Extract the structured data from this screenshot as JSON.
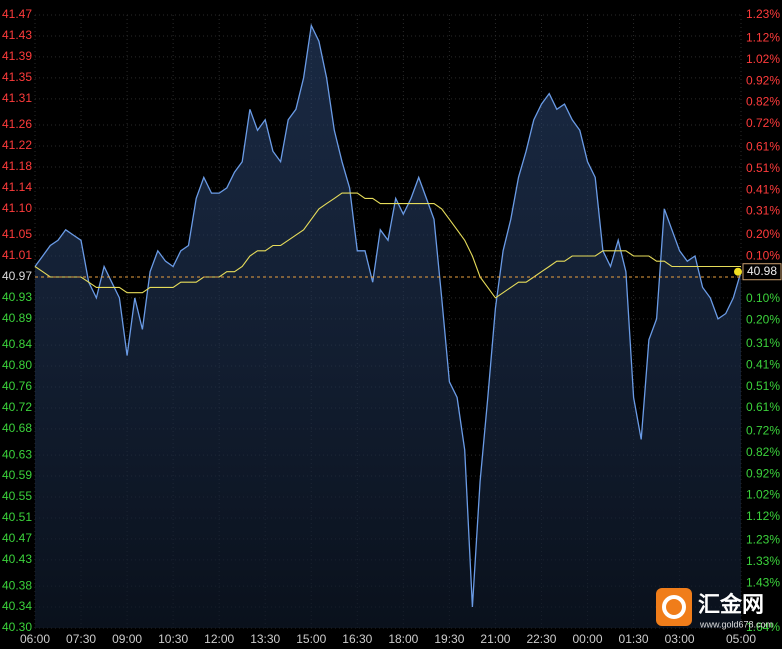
{
  "chart_data": {
    "type": "line",
    "x": [
      "06:00",
      "06:15",
      "06:30",
      "06:45",
      "07:00",
      "07:15",
      "07:30",
      "07:45",
      "08:00",
      "08:15",
      "08:30",
      "08:45",
      "09:00",
      "09:15",
      "09:30",
      "09:45",
      "10:00",
      "10:15",
      "10:30",
      "10:45",
      "11:00",
      "11:15",
      "11:30",
      "11:45",
      "12:00",
      "12:15",
      "12:30",
      "12:45",
      "13:00",
      "13:15",
      "13:30",
      "13:45",
      "14:00",
      "14:15",
      "14:30",
      "14:45",
      "15:00",
      "15:15",
      "15:30",
      "15:45",
      "16:00",
      "16:15",
      "16:30",
      "16:45",
      "17:00",
      "17:15",
      "17:30",
      "17:45",
      "18:00",
      "18:15",
      "18:30",
      "18:45",
      "19:00",
      "19:15",
      "19:30",
      "19:45",
      "20:00",
      "20:15",
      "20:30",
      "20:45",
      "21:00",
      "21:15",
      "21:30",
      "21:45",
      "22:00",
      "22:15",
      "22:30",
      "22:45",
      "23:00",
      "23:15",
      "23:30",
      "23:45",
      "00:00",
      "00:15",
      "00:30",
      "00:45",
      "01:00",
      "01:15",
      "01:30",
      "01:45",
      "02:00",
      "02:15",
      "02:30",
      "02:45",
      "03:00",
      "03:15",
      "03:30",
      "03:45",
      "04:00",
      "04:15",
      "04:30",
      "04:45",
      "05:00"
    ],
    "series": [
      {
        "color": "#6a9be6",
        "fill": true,
        "values": [
          40.99,
          41.01,
          41.03,
          41.04,
          41.06,
          41.05,
          41.04,
          40.96,
          40.93,
          40.99,
          40.96,
          40.93,
          40.82,
          40.93,
          40.87,
          40.98,
          41.02,
          41.0,
          40.99,
          41.02,
          41.03,
          41.12,
          41.16,
          41.13,
          41.13,
          41.14,
          41.17,
          41.19,
          41.29,
          41.25,
          41.27,
          41.21,
          41.19,
          41.27,
          41.29,
          41.35,
          41.45,
          41.42,
          41.35,
          41.25,
          41.19,
          41.14,
          41.02,
          41.02,
          40.96,
          41.06,
          41.04,
          41.12,
          41.09,
          41.12,
          41.16,
          41.12,
          41.08,
          40.93,
          40.77,
          40.74,
          40.64,
          40.34,
          40.58,
          40.74,
          40.91,
          41.02,
          41.08,
          41.16,
          41.21,
          41.27,
          41.3,
          41.32,
          41.29,
          41.3,
          41.27,
          41.25,
          41.19,
          41.16,
          41.02,
          40.99,
          41.04,
          40.98,
          40.74,
          40.66,
          40.85,
          40.89,
          41.1,
          41.06,
          41.02,
          41.0,
          41.01,
          40.95,
          40.93,
          40.89,
          40.9,
          40.93,
          40.98
        ]
      },
      {
        "color": "#e6dc5a",
        "fill": false,
        "values": [
          40.99,
          40.98,
          40.97,
          40.97,
          40.97,
          40.97,
          40.97,
          40.96,
          40.95,
          40.95,
          40.95,
          40.95,
          40.94,
          40.94,
          40.94,
          40.95,
          40.95,
          40.95,
          40.95,
          40.96,
          40.96,
          40.96,
          40.97,
          40.97,
          40.97,
          40.98,
          40.98,
          40.99,
          41.01,
          41.02,
          41.02,
          41.03,
          41.03,
          41.04,
          41.05,
          41.06,
          41.08,
          41.1,
          41.11,
          41.12,
          41.13,
          41.13,
          41.13,
          41.12,
          41.12,
          41.11,
          41.11,
          41.11,
          41.11,
          41.11,
          41.11,
          41.11,
          41.11,
          41.1,
          41.08,
          41.06,
          41.04,
          41.01,
          40.97,
          40.95,
          40.93,
          40.94,
          40.95,
          40.96,
          40.96,
          40.97,
          40.98,
          40.99,
          41.0,
          41.0,
          41.01,
          41.01,
          41.01,
          41.01,
          41.02,
          41.02,
          41.02,
          41.02,
          41.01,
          41.01,
          41.01,
          41.0,
          41.0,
          40.99,
          40.99,
          40.99,
          40.99,
          40.99,
          40.99,
          40.99,
          40.99,
          40.99,
          40.99
        ]
      }
    ],
    "xticks": [
      "06:00",
      "07:30",
      "09:00",
      "10:30",
      "12:00",
      "13:30",
      "15:00",
      "16:30",
      "18:00",
      "19:30",
      "21:00",
      "22:30",
      "00:00",
      "01:30",
      "03:00",
      "05:00"
    ],
    "ylim": [
      40.3,
      41.47
    ],
    "yticks": [
      41.47,
      41.43,
      41.39,
      41.35,
      41.31,
      41.26,
      41.22,
      41.18,
      41.14,
      {
        "value": 41.1,
        "label": "41.10"
      },
      41.05,
      41.01,
      40.97,
      40.93,
      40.89,
      40.84,
      {
        "value": 40.8,
        "label": "40.80"
      },
      40.76,
      40.72,
      40.68,
      40.63,
      40.59,
      40.55,
      40.51,
      40.47,
      40.43,
      40.38,
      40.34,
      {
        "value": 40.3,
        "label": "40.30"
      }
    ],
    "y2lim": [
      -1.64,
      1.23
    ],
    "y2ticks": [
      {
        "value": 1.23,
        "label": "1.23%"
      },
      {
        "value": 1.12,
        "label": "1.12%"
      },
      {
        "value": 1.02,
        "label": "1.02%"
      },
      {
        "value": 0.92,
        "label": "0.92%"
      },
      {
        "value": 0.82,
        "label": "0.82%"
      },
      {
        "value": 0.72,
        "label": "0.72%"
      },
      {
        "value": 0.61,
        "label": "0.61%"
      },
      {
        "value": 0.51,
        "label": "0.51%"
      },
      {
        "value": 0.41,
        "label": "0.41%"
      },
      {
        "value": 0.31,
        "label": "0.31%"
      },
      {
        "value": 0.2,
        "label": "0.20%"
      },
      {
        "value": 0.1,
        "label": "0.10%"
      },
      {
        "value": -0.1,
        "label": "0.10%"
      },
      {
        "value": -0.2,
        "label": "0.20%"
      },
      {
        "value": -0.31,
        "label": "0.31%"
      },
      {
        "value": -0.41,
        "label": "0.41%"
      },
      {
        "value": -0.51,
        "label": "0.51%"
      },
      {
        "value": -0.61,
        "label": "0.61%"
      },
      {
        "value": -0.72,
        "label": "0.72%"
      },
      {
        "value": -0.82,
        "label": "0.82%"
      },
      {
        "value": -0.92,
        "label": "0.92%"
      },
      {
        "value": -1.02,
        "label": "1.02%"
      },
      {
        "value": -1.12,
        "label": "1.12%"
      },
      {
        "value": -1.23,
        "label": "1.23%"
      },
      {
        "value": -1.33,
        "label": "1.33%"
      },
      {
        "value": -1.43,
        "label": "1.43%"
      },
      {
        "value": -1.64,
        "label": "1.64%"
      }
    ],
    "reference_line": 40.97,
    "grid": true,
    "up_color": "#ff3b3b",
    "down_color": "#3bd23b",
    "flat_color": "#dddddd"
  },
  "watermark": {
    "name": "汇金网",
    "url": "www.gold678.com"
  }
}
